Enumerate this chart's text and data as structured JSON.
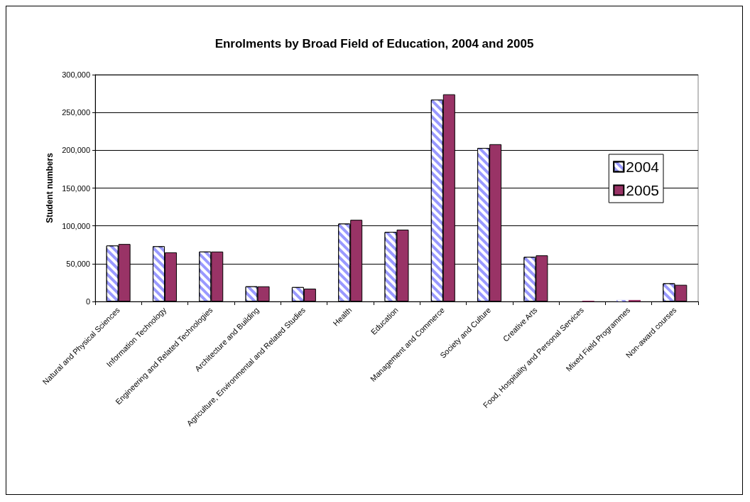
{
  "chart_data": {
    "type": "bar",
    "title": "Enrolments by Broad Field of Education, 2004 and 2005",
    "ylabel": "Student numbers",
    "categories": [
      "Natural and Physical Sciences",
      "Information Technology",
      "Engineering and Related Technologies",
      "Architecture and Building",
      "Agriculture, Environmental and Related Studies",
      "Health",
      "Education",
      "Management and Commerce",
      "Society and Culture",
      "Creative Arts",
      "Food, Hospitality and Personal Services",
      "Mixed Field Programmes",
      "Non-award courses"
    ],
    "series": [
      {
        "name": "2004",
        "color": "#9999ff",
        "values": [
          74000,
          73000,
          66000,
          20000,
          19000,
          103000,
          92000,
          267000,
          203000,
          59000,
          0,
          2000,
          24000
        ]
      },
      {
        "name": "2005",
        "color": "#993366",
        "values": [
          76000,
          65000,
          66000,
          20000,
          17000,
          108000,
          95000,
          274000,
          208000,
          61000,
          1000,
          2000,
          22000
        ]
      }
    ],
    "ylim": [
      0,
      300000
    ],
    "yticks": [
      {
        "value": 0,
        "label": "0"
      },
      {
        "value": 50000,
        "label": "50,000"
      },
      {
        "value": 100000,
        "label": "100,000"
      },
      {
        "value": 150000,
        "label": "150,000"
      },
      {
        "value": 200000,
        "label": "200,000"
      },
      {
        "value": 250000,
        "label": "250,000"
      },
      {
        "value": 300000,
        "label": "300,000"
      }
    ],
    "grid": "y",
    "legend": "right"
  }
}
